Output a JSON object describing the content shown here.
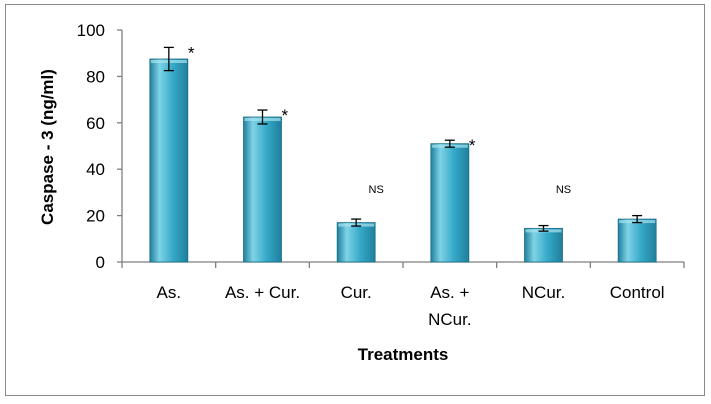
{
  "chart_data": {
    "type": "bar",
    "title": "",
    "xlabel": "Treatments",
    "ylabel": "Caspase - 3 (ng/ml)",
    "ylim": [
      0,
      100
    ],
    "yticks": [
      0,
      20,
      40,
      60,
      80,
      100
    ],
    "grid": false,
    "legend": "none",
    "categories": [
      [
        "As."
      ],
      [
        "As. + Cur."
      ],
      [
        "Cur."
      ],
      [
        "As. +",
        "NCur."
      ],
      [
        "NCur."
      ],
      [
        "Control"
      ]
    ],
    "values": [
      87.5,
      62.5,
      17,
      51,
      14.5,
      18.5
    ],
    "errors": [
      5,
      3,
      1.5,
      1.5,
      1.2,
      1.5
    ],
    "significance": [
      "*",
      "*",
      "NS",
      "*",
      "NS",
      ""
    ],
    "colors": {
      "bar_light": "#7fd3e6",
      "bar_mid": "#36aac9",
      "bar_dark": "#1f7f9c",
      "bar_edge": "#1b6f88",
      "axis": "#7f7f7f"
    }
  }
}
